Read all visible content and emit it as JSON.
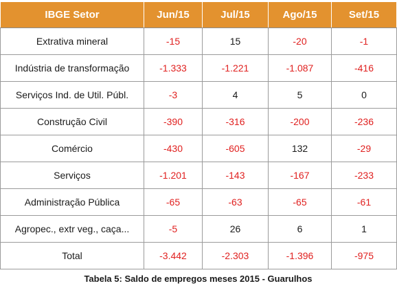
{
  "table": {
    "headers": [
      "IBGE Setor",
      "Jun/15",
      "Jul/15",
      "Ago/15",
      "Set/15"
    ],
    "rows": [
      {
        "sector": "Extrativa mineral",
        "values": [
          "-15",
          "15",
          "-20",
          "-1"
        ]
      },
      {
        "sector": "Indústria de transformação",
        "values": [
          "-1.333",
          "-1.221",
          "-1.087",
          "-416"
        ]
      },
      {
        "sector": "Serviços Ind. de Util. Públ.",
        "values": [
          "-3",
          "4",
          "5",
          "0"
        ]
      },
      {
        "sector": "Construção Civil",
        "values": [
          "-390",
          "-316",
          "-200",
          "-236"
        ]
      },
      {
        "sector": "Comércio",
        "values": [
          "-430",
          "-605",
          "132",
          "-29"
        ]
      },
      {
        "sector": "Serviços",
        "values": [
          "-1.201",
          "-143",
          "-167",
          "-233"
        ]
      },
      {
        "sector": "Administração Pública",
        "values": [
          "-65",
          "-63",
          "-65",
          "-61"
        ]
      },
      {
        "sector": "Agropec., extr veg., caça...",
        "values": [
          "-5",
          "26",
          "6",
          "1"
        ]
      },
      {
        "sector": "Total",
        "values": [
          "-3.442",
          "-2.303",
          "-1.396",
          "-975"
        ]
      }
    ]
  },
  "caption": "Tabela 5: Saldo de empregos meses 2015 - Guarulhos",
  "colors": {
    "header_bg": "#e3922f",
    "header_text": "#ffffff",
    "negative": "#e0201f",
    "positive": "#1a1a1a",
    "border": "#9a9a9a"
  }
}
